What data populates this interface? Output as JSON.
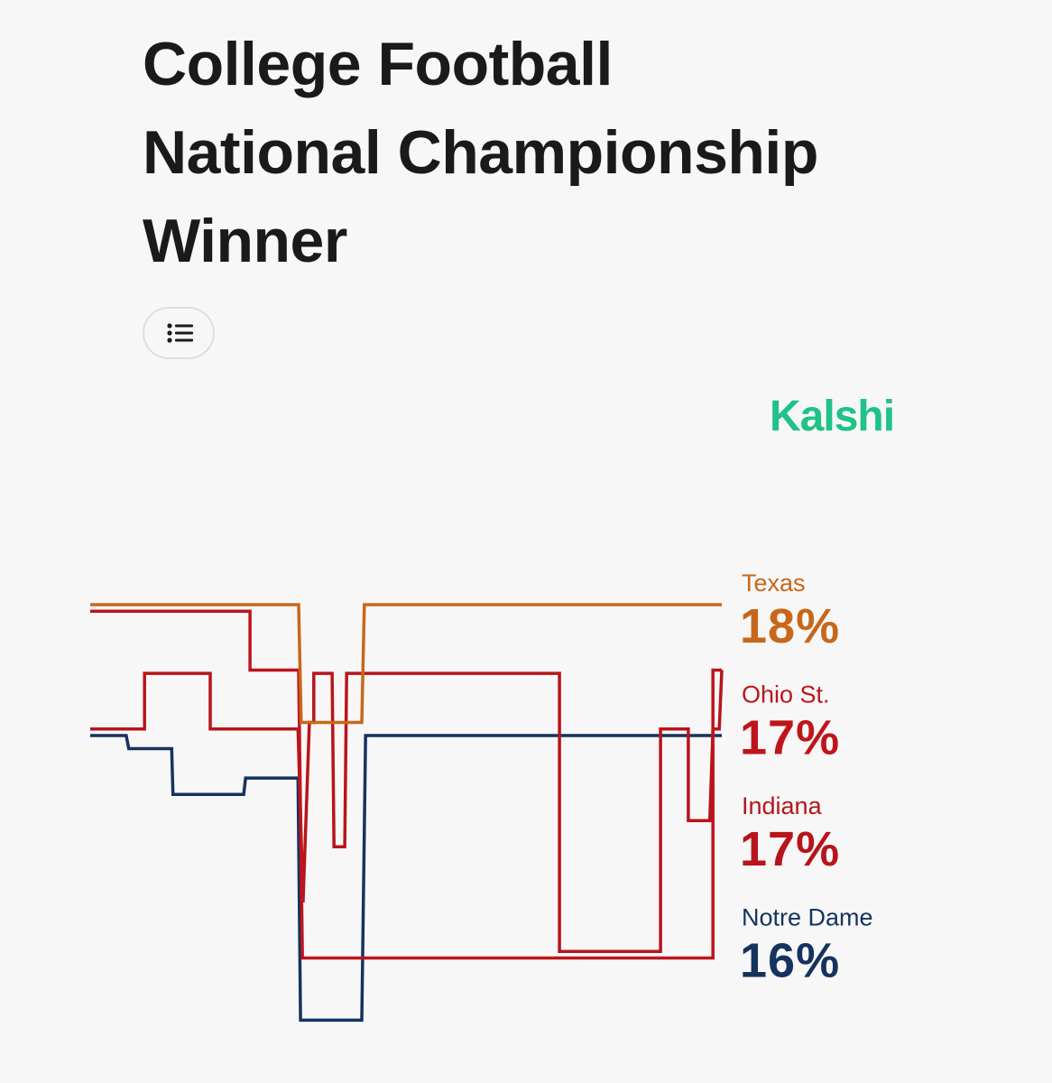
{
  "logo": "Kalshi",
  "chart_data": {
    "type": "line",
    "title": "College Football National Championship Winner",
    "xlim": [
      0,
      100
    ],
    "ylim": [
      11,
      19
    ],
    "series": [
      {
        "name": "Texas",
        "color": "#c8671a",
        "x": [
          0,
          33,
          33.4,
          43,
          43.4,
          100
        ],
        "values": [
          18,
          18,
          16.2,
          16.2,
          18,
          18
        ],
        "value_labels": [
          null,
          null,
          null,
          null,
          null,
          "18%"
        ]
      },
      {
        "name": "Ohio St.",
        "color": "#c0141c",
        "x": [
          0,
          25.3,
          25.3,
          33,
          33.6,
          98.6,
          98.6,
          100
        ],
        "values": [
          17.9,
          17.9,
          17,
          17,
          12.6,
          12.6,
          17,
          17
        ],
        "value_labels": [
          null,
          null,
          null,
          null,
          null,
          null,
          null,
          "17%"
        ]
      },
      {
        "name": "Indiana",
        "color": "#b8141b",
        "x": [
          0,
          8.6,
          8.6,
          19,
          19,
          32.9,
          33.7,
          34.7,
          35.4,
          35.4,
          38.3,
          38.6,
          40.3,
          40.6,
          74.3,
          74.3,
          90.3,
          90.3,
          94.7,
          94.7,
          98.1,
          98.6,
          99.6,
          100
        ],
        "values": [
          16.1,
          16.1,
          16.95,
          16.95,
          16.1,
          16.1,
          13.45,
          16.2,
          16.2,
          16.95,
          16.95,
          14.3,
          14.3,
          16.95,
          16.95,
          12.7,
          12.7,
          16.1,
          16.1,
          14.7,
          14.7,
          16.1,
          16.1,
          17
        ],
        "value_labels": [
          null,
          null,
          null,
          null,
          null,
          null,
          null,
          null,
          null,
          null,
          null,
          null,
          null,
          null,
          null,
          null,
          null,
          null,
          null,
          null,
          null,
          null,
          null,
          "17%"
        ]
      },
      {
        "name": "Notre Dame",
        "color": "#15335e",
        "x": [
          0,
          5.7,
          6.1,
          12.9,
          13.1,
          24.3,
          24.6,
          32.9,
          33.3,
          43,
          43.6,
          100
        ],
        "values": [
          16,
          16,
          15.8,
          15.8,
          15.1,
          15.1,
          15.35,
          15.35,
          11.65,
          11.65,
          16,
          16
        ],
        "value_labels": [
          null,
          null,
          null,
          null,
          null,
          null,
          null,
          null,
          null,
          null,
          null,
          "16%"
        ]
      }
    ]
  }
}
